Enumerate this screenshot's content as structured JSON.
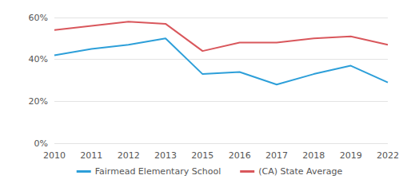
{
  "chart_data": {
    "type": "line",
    "categories": [
      "2010",
      "2011",
      "2012",
      "2013",
      "2015",
      "2016",
      "2017",
      "2018",
      "2019",
      "2022"
    ],
    "series": [
      {
        "name": "Fairmead Elementary School",
        "color": "#2d9fd9",
        "values": [
          42,
          45,
          47,
          50,
          33,
          34,
          28,
          33,
          37,
          29
        ]
      },
      {
        "name": "(CA) State Average",
        "color": "#d9575c",
        "values": [
          54,
          56,
          58,
          57,
          44,
          48,
          48,
          50,
          51,
          47
        ]
      }
    ],
    "ylim": [
      0,
      60
    ],
    "yticks": [
      {
        "value": 0,
        "label": "0%"
      },
      {
        "value": 20,
        "label": "20%"
      },
      {
        "value": 40,
        "label": "40%"
      },
      {
        "value": 60,
        "label": "60%"
      }
    ],
    "grid": true,
    "legend": "bottom"
  }
}
